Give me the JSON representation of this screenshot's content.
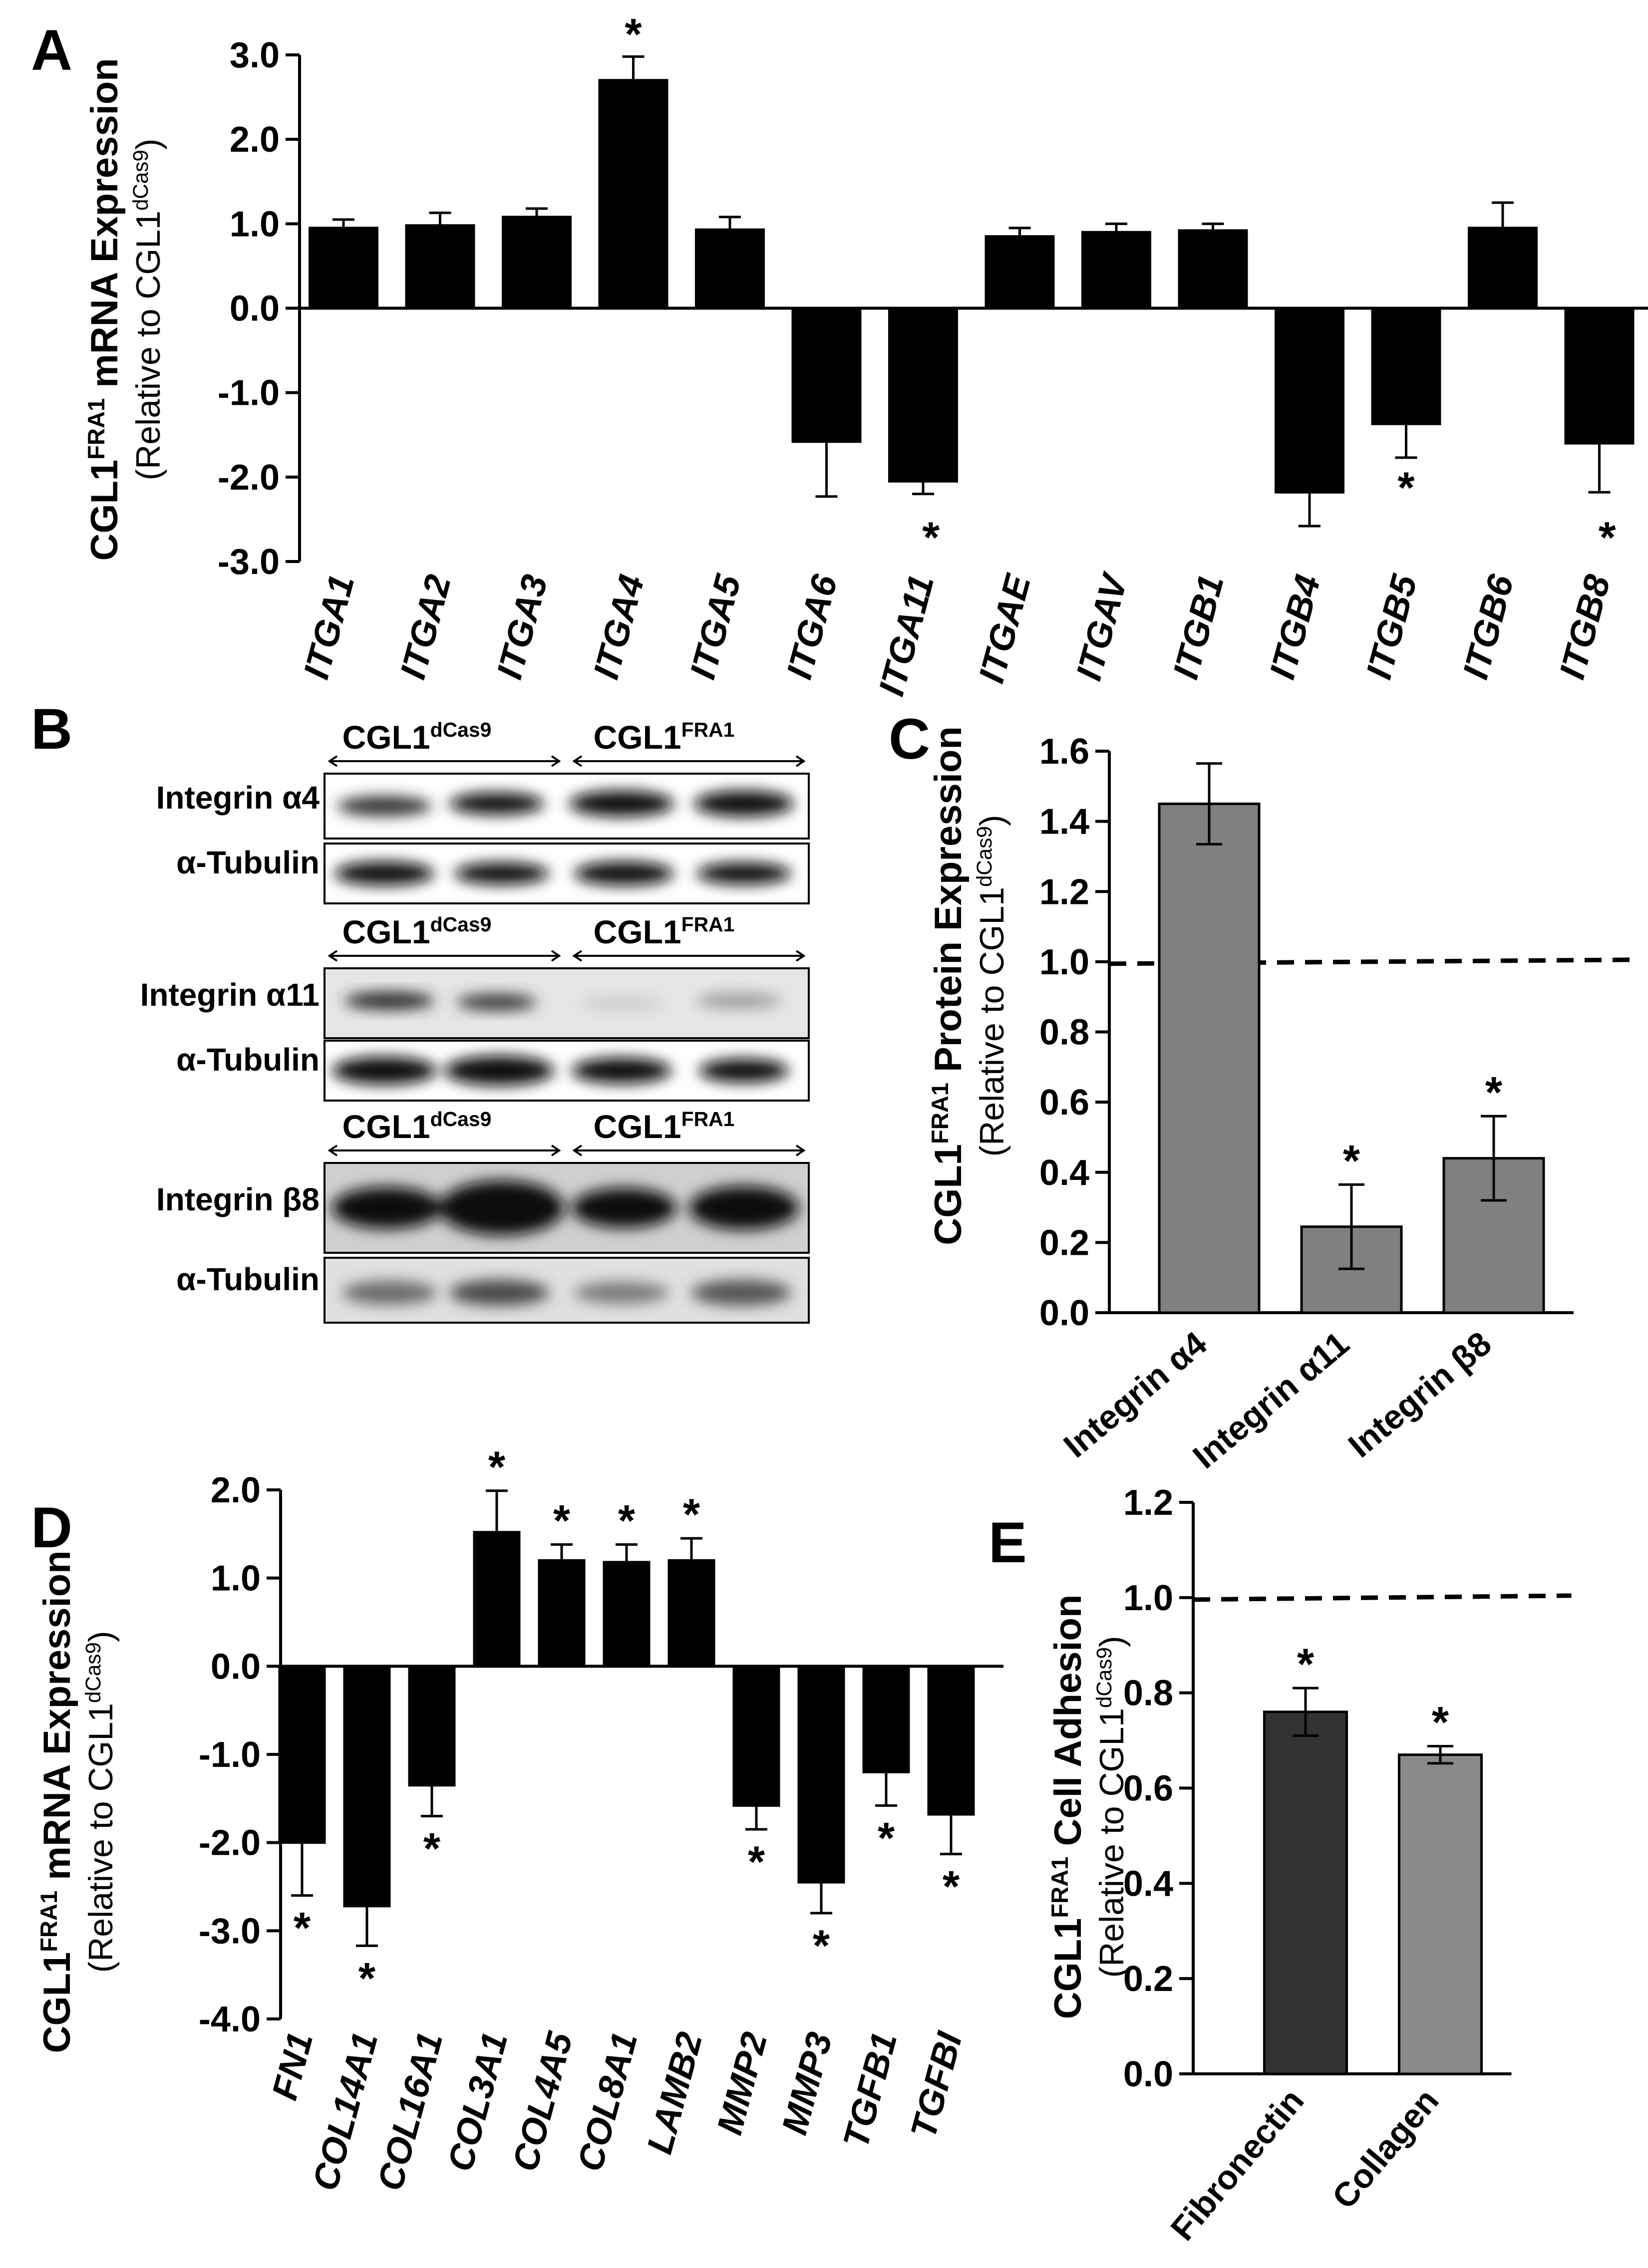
{
  "panels": {
    "A": {
      "letter": "A"
    },
    "B": {
      "letter": "B"
    },
    "C": {
      "letter": "C"
    },
    "D": {
      "letter": "D"
    },
    "E": {
      "letter": "E"
    }
  },
  "ylabels": {
    "mrna_main": "CGL1",
    "mrna_sup": "FRA1",
    "mrna_tail": " mRNA Expression",
    "protein_tail": " Protein Expression",
    "adhesion_tail": " Cell Adhesion",
    "relative_pre": "(Relative to CGL1",
    "relative_sup": "dCas9",
    "relative_post": ")"
  },
  "blot": {
    "groups": [
      {
        "left_main": "CGL1",
        "left_sup": "dCas9",
        "right_main": "CGL1",
        "right_sup": "FRA1",
        "target": "Integrin α4",
        "loading": "α-Tubulin"
      },
      {
        "left_main": "CGL1",
        "left_sup": "dCas9",
        "right_main": "CGL1",
        "right_sup": "FRA1",
        "target": "Integrin α11",
        "loading": "α-Tubulin"
      },
      {
        "left_main": "CGL1",
        "left_sup": "dCas9",
        "right_main": "CGL1",
        "right_sup": "FRA1",
        "target": "Integrin β8",
        "loading": "α-Tubulin"
      }
    ]
  },
  "chart_data": [
    {
      "panel": "A",
      "type": "bar",
      "categories": [
        "ITGA1",
        "ITGA2",
        "ITGA3",
        "ITGA4",
        "ITGA5",
        "ITGA6",
        "ITGA11",
        "ITGAE",
        "ITGAV",
        "ITGB1",
        "ITGB4",
        "ITGB5",
        "ITGB6",
        "ITGB8"
      ],
      "values": [
        0.95,
        0.98,
        1.08,
        2.7,
        0.93,
        -1.58,
        -2.05,
        0.85,
        0.9,
        0.92,
        -2.18,
        -1.37,
        0.95,
        -1.6
      ],
      "errors": [
        0.1,
        0.15,
        0.1,
        0.28,
        0.15,
        0.65,
        0.15,
        0.1,
        0.1,
        0.08,
        0.4,
        0.4,
        0.3,
        0.58
      ],
      "significant": [
        false,
        false,
        false,
        true,
        false,
        false,
        true,
        false,
        false,
        false,
        false,
        true,
        false,
        true
      ],
      "ylim": [
        -3.0,
        3.0
      ],
      "yticks": [
        "3.0",
        "2.0",
        "1.0",
        "0.0",
        "-1.0",
        "-2.0",
        "-3.0"
      ],
      "ytick_values": [
        3,
        2,
        1,
        0,
        -1,
        -2,
        -3
      ],
      "bar_color": "#000000",
      "significance_marker": "*"
    },
    {
      "panel": "C",
      "type": "bar",
      "categories": [
        "Integrin α4",
        "Integrin α11",
        "Integrin β8"
      ],
      "values": [
        1.45,
        0.245,
        0.44
      ],
      "errors": [
        0.115,
        0.12,
        0.12
      ],
      "significant": [
        false,
        true,
        true
      ],
      "ylim": [
        0.0,
        1.6
      ],
      "yticks": [
        "1.6",
        "1.4",
        "1.2",
        "1.0",
        "0.8",
        "0.6",
        "0.4",
        "0.2",
        "0.0"
      ],
      "ytick_values": [
        1.6,
        1.4,
        1.2,
        1.0,
        0.8,
        0.6,
        0.4,
        0.2,
        0.0
      ],
      "reference_line": 1.0,
      "bar_color": "#808080",
      "significance_marker": "*"
    },
    {
      "panel": "D",
      "type": "bar",
      "categories": [
        "FN1",
        "COL14A1",
        "COL16A1",
        "COL3A1",
        "COL4A5",
        "COL8A1",
        "LAMB2",
        "MMP2",
        "MMP3",
        "TGFB1",
        "TGFBI"
      ],
      "values": [
        -2.0,
        -2.72,
        -1.35,
        1.52,
        1.2,
        1.18,
        1.2,
        -1.58,
        -2.45,
        -1.2,
        -1.68
      ],
      "errors": [
        0.6,
        0.45,
        0.35,
        0.47,
        0.18,
        0.2,
        0.25,
        0.27,
        0.35,
        0.38,
        0.45
      ],
      "significant": [
        true,
        true,
        true,
        true,
        true,
        true,
        true,
        true,
        true,
        true,
        true
      ],
      "ylim": [
        -4.0,
        2.0
      ],
      "yticks": [
        "2.0",
        "1.0",
        "0.0",
        "-1.0",
        "-2.0",
        "-3.0",
        "-4.0"
      ],
      "ytick_values": [
        2,
        1,
        0,
        -1,
        -2,
        -3,
        -4
      ],
      "bar_color": "#000000",
      "significance_marker": "*"
    },
    {
      "panel": "E",
      "type": "bar",
      "categories": [
        "Fibronectin",
        "Collagen"
      ],
      "values": [
        0.76,
        0.67
      ],
      "errors": [
        0.05,
        0.018
      ],
      "significant": [
        true,
        true
      ],
      "ylim": [
        0.0,
        1.2
      ],
      "yticks": [
        "1.2",
        "1.0",
        "0.8",
        "0.6",
        "0.4",
        "0.2",
        "0.0"
      ],
      "ytick_values": [
        1.2,
        1.0,
        0.8,
        0.6,
        0.4,
        0.2,
        0.0
      ],
      "reference_line": 1.0,
      "bar_colors": [
        "#333333",
        "#8a8a8a"
      ],
      "significance_marker": "*"
    }
  ]
}
